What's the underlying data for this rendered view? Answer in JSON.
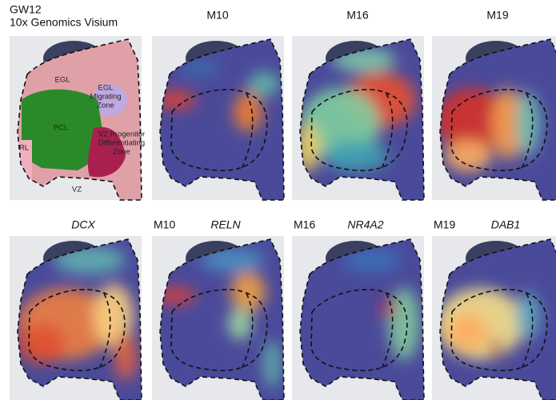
{
  "header": {
    "title": "GW12",
    "subtitle": "10x Genomics Visium"
  },
  "anatomy_labels": [
    {
      "lines": [
        "EGL"
      ]
    },
    {
      "lines": [
        "EGL",
        "Migrating",
        "Zone"
      ]
    },
    {
      "lines": [
        "PCL"
      ]
    },
    {
      "lines": [
        "VZ Progenitor",
        "Differentiating",
        "Zone"
      ]
    },
    {
      "lines": [
        "RL"
      ]
    },
    {
      "lines": [
        "VZ"
      ]
    }
  ],
  "module_panels": [
    {
      "title": "M10"
    },
    {
      "title": "M16"
    },
    {
      "title": "M19"
    }
  ],
  "gene_panels": [
    {
      "gene": "DCX"
    },
    {
      "module": "M10",
      "gene": "RELN"
    },
    {
      "module": "M16",
      "gene": "NR4A2"
    },
    {
      "module": "M19",
      "gene": "DAB1"
    }
  ]
}
